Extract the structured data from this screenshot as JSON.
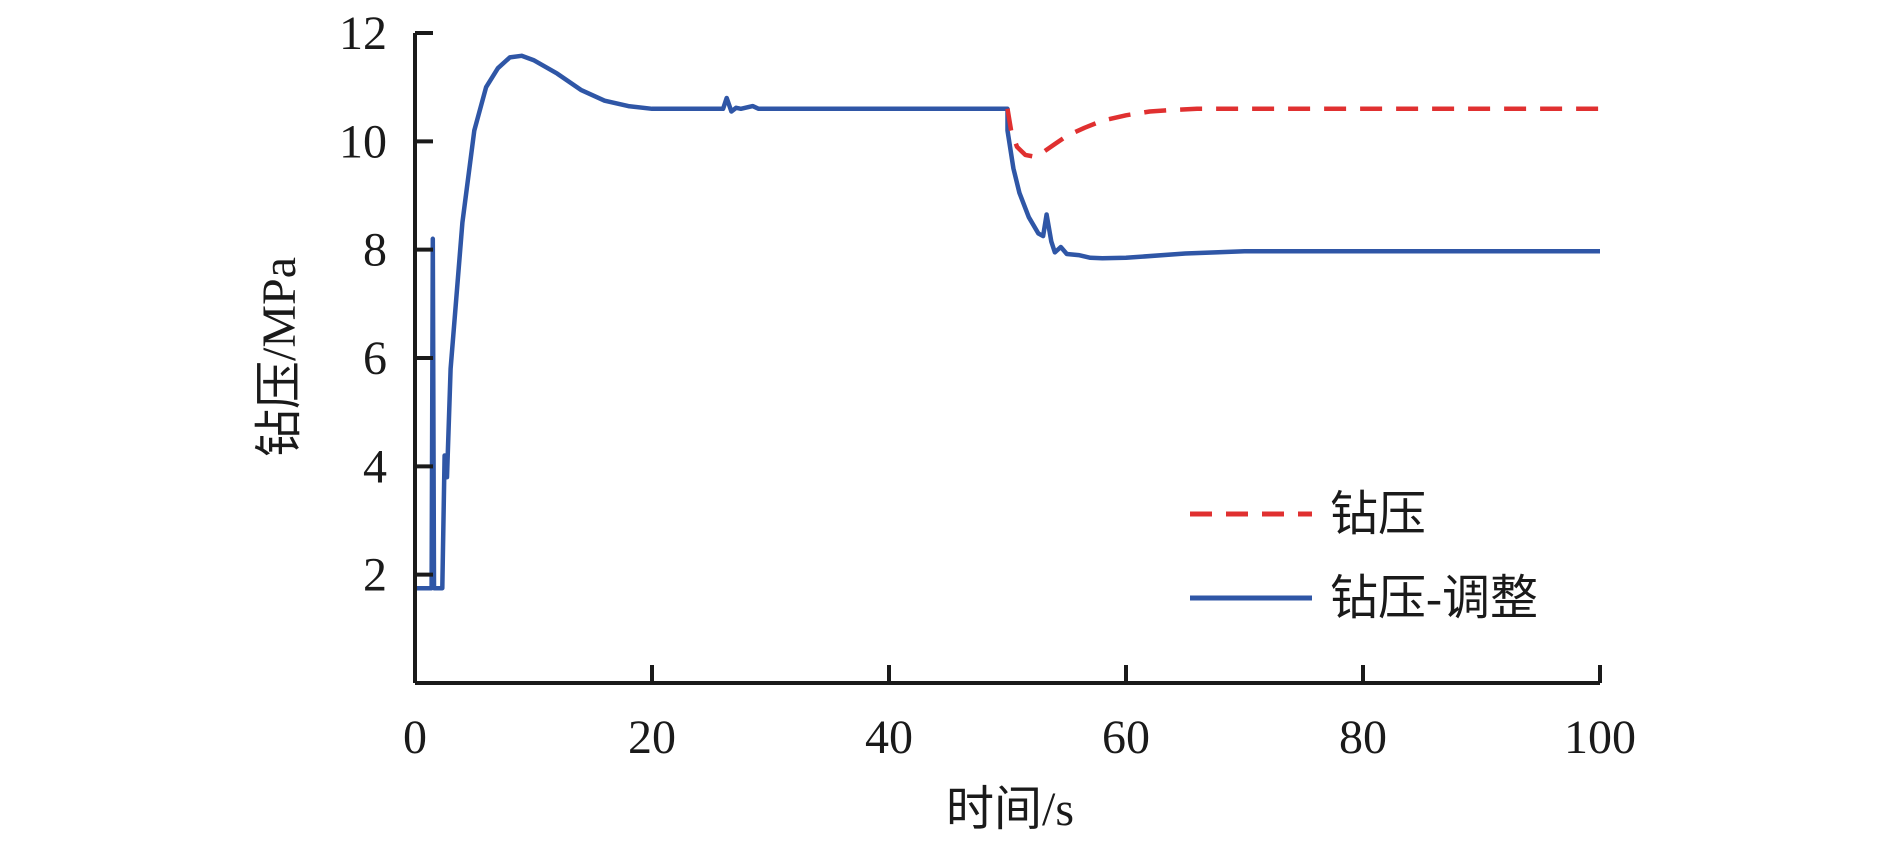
{
  "chart_data": {
    "type": "line",
    "xlabel": "时间/s",
    "ylabel": "钻压/MPa",
    "xlim": [
      0,
      100
    ],
    "ylim": [
      0,
      12
    ],
    "x_ticks": [
      0,
      20,
      40,
      60,
      80,
      100
    ],
    "y_ticks": [
      2,
      4,
      6,
      8,
      10,
      12
    ],
    "grid": false,
    "legend_position": "bottom-right",
    "series": [
      {
        "name": "钻压",
        "color": "#e03030",
        "style": "dashed",
        "points": [
          [
            50.0,
            10.6
          ],
          [
            50.3,
            10.2
          ],
          [
            50.8,
            9.9
          ],
          [
            51.5,
            9.75
          ],
          [
            52.2,
            9.72
          ],
          [
            53.0,
            9.8
          ],
          [
            54.0,
            9.95
          ],
          [
            55.0,
            10.1
          ],
          [
            56.5,
            10.25
          ],
          [
            58.0,
            10.38
          ],
          [
            60.0,
            10.48
          ],
          [
            62.0,
            10.55
          ],
          [
            64.0,
            10.58
          ],
          [
            66.0,
            10.6
          ],
          [
            70.0,
            10.6
          ],
          [
            80.0,
            10.6
          ],
          [
            90.0,
            10.6
          ],
          [
            100.0,
            10.6
          ]
        ]
      },
      {
        "name": "钻压-调整",
        "color": "#2f56a6",
        "style": "solid",
        "points": [
          [
            0.0,
            1.75
          ],
          [
            1.4,
            1.75
          ],
          [
            1.5,
            8.2
          ],
          [
            1.6,
            1.75
          ],
          [
            2.3,
            1.75
          ],
          [
            2.5,
            4.2
          ],
          [
            2.7,
            3.8
          ],
          [
            3.0,
            5.8
          ],
          [
            4.0,
            8.5
          ],
          [
            5.0,
            10.2
          ],
          [
            6.0,
            11.0
          ],
          [
            7.0,
            11.35
          ],
          [
            8.0,
            11.55
          ],
          [
            9.0,
            11.58
          ],
          [
            10.0,
            11.5
          ],
          [
            12.0,
            11.25
          ],
          [
            14.0,
            10.95
          ],
          [
            16.0,
            10.75
          ],
          [
            18.0,
            10.65
          ],
          [
            20.0,
            10.6
          ],
          [
            22.0,
            10.6
          ],
          [
            24.0,
            10.6
          ],
          [
            26.0,
            10.6
          ],
          [
            26.3,
            10.8
          ],
          [
            26.7,
            10.55
          ],
          [
            27.1,
            10.62
          ],
          [
            27.5,
            10.6
          ],
          [
            28.5,
            10.65
          ],
          [
            29.0,
            10.6
          ],
          [
            30.0,
            10.6
          ],
          [
            40.0,
            10.6
          ],
          [
            50.0,
            10.6
          ],
          [
            50.0,
            10.2
          ],
          [
            50.5,
            9.5
          ],
          [
            51.0,
            9.05
          ],
          [
            51.8,
            8.6
          ],
          [
            52.6,
            8.3
          ],
          [
            53.0,
            8.25
          ],
          [
            53.3,
            8.65
          ],
          [
            53.7,
            8.15
          ],
          [
            54.0,
            7.95
          ],
          [
            54.5,
            8.05
          ],
          [
            55.0,
            7.92
          ],
          [
            56.0,
            7.9
          ],
          [
            57.0,
            7.85
          ],
          [
            58.0,
            7.84
          ],
          [
            60.0,
            7.85
          ],
          [
            65.0,
            7.93
          ],
          [
            70.0,
            7.97
          ],
          [
            80.0,
            7.97
          ],
          [
            90.0,
            7.97
          ],
          [
            100.0,
            7.97
          ]
        ]
      }
    ]
  }
}
